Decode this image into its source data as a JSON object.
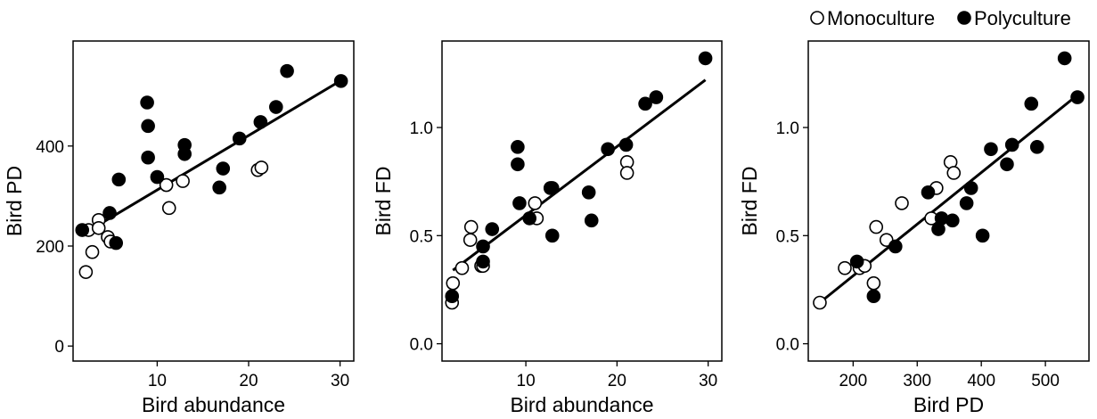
{
  "legend": {
    "entries": [
      {
        "label": "Monoculture",
        "marker": "open-circle"
      },
      {
        "label": "Polyculture",
        "marker": "filled-circle"
      }
    ],
    "placement": "top-right"
  },
  "colors": {
    "ink": "#000000",
    "open_fill": "#ffffff"
  },
  "chart_data": [
    {
      "type": "scatter",
      "title": "",
      "xlabel": "Bird abundance",
      "ylabel": "Bird PD",
      "xlim": [
        0.8,
        31.5
      ],
      "ylim": [
        -30,
        610
      ],
      "xticks": [
        10,
        20,
        30
      ],
      "yticks": [
        0,
        200,
        400
      ],
      "grid": false,
      "trendline": {
        "x": [
          2,
          30
        ],
        "y": [
          225,
          530
        ]
      },
      "series": [
        {
          "name": "Monoculture",
          "marker": "open",
          "points": [
            [
              2.2,
              148
            ],
            [
              2.5,
              232
            ],
            [
              2.9,
              188
            ],
            [
              3.6,
              252
            ],
            [
              3.6,
              236
            ],
            [
              4.6,
              218
            ],
            [
              4.9,
              209
            ],
            [
              11.0,
              322
            ],
            [
              11.3,
              276
            ],
            [
              12.8,
              330
            ],
            [
              21.0,
              352
            ],
            [
              21.4,
              357
            ]
          ]
        },
        {
          "name": "Polyculture",
          "marker": "filled",
          "points": [
            [
              1.8,
              232
            ],
            [
              4.8,
              266
            ],
            [
              5.5,
              206
            ],
            [
              5.8,
              333
            ],
            [
              8.9,
              487
            ],
            [
              9.0,
              440
            ],
            [
              9.0,
              377
            ],
            [
              10.0,
              338
            ],
            [
              13.0,
              402
            ],
            [
              13.0,
              384
            ],
            [
              16.8,
              317
            ],
            [
              17.2,
              355
            ],
            [
              19.0,
              415
            ],
            [
              21.3,
              448
            ],
            [
              23.0,
              478
            ],
            [
              24.2,
              550
            ],
            [
              30.1,
              530
            ]
          ]
        }
      ]
    },
    {
      "type": "scatter",
      "title": "",
      "xlabel": "Bird abundance",
      "ylabel": "Bird FD",
      "xlim": [
        0.8,
        31.5
      ],
      "ylim": [
        -0.08,
        1.4
      ],
      "xticks": [
        10,
        20,
        30
      ],
      "yticks": [
        "0.0",
        "0.5",
        "1.0"
      ],
      "grid": false,
      "trendline": {
        "x": [
          2,
          29.7
        ],
        "y": [
          0.34,
          1.22
        ]
      },
      "series": [
        {
          "name": "Monoculture",
          "marker": "open",
          "points": [
            [
              1.9,
              0.19
            ],
            [
              2.0,
              0.28
            ],
            [
              3.0,
              0.35
            ],
            [
              3.9,
              0.48
            ],
            [
              4.0,
              0.54
            ],
            [
              5.1,
              0.36
            ],
            [
              5.3,
              0.36
            ],
            [
              11.0,
              0.65
            ],
            [
              11.2,
              0.58
            ],
            [
              21.1,
              0.84
            ],
            [
              21.1,
              0.79
            ]
          ]
        },
        {
          "name": "Polyculture",
          "marker": "filled",
          "points": [
            [
              1.9,
              0.22
            ],
            [
              5.3,
              0.38
            ],
            [
              5.3,
              0.45
            ],
            [
              6.3,
              0.53
            ],
            [
              9.1,
              0.91
            ],
            [
              9.1,
              0.83
            ],
            [
              9.3,
              0.65
            ],
            [
              10.4,
              0.58
            ],
            [
              12.7,
              0.72
            ],
            [
              12.9,
              0.72
            ],
            [
              12.9,
              0.5
            ],
            [
              16.9,
              0.7
            ],
            [
              17.2,
              0.57
            ],
            [
              19.0,
              0.9
            ],
            [
              21.0,
              0.92
            ],
            [
              23.1,
              1.11
            ],
            [
              24.3,
              1.14
            ],
            [
              29.7,
              1.32
            ]
          ]
        }
      ]
    },
    {
      "type": "scatter",
      "title": "",
      "xlabel": "Bird PD",
      "ylabel": "Bird FD",
      "xlim": [
        130,
        568
      ],
      "ylim": [
        -0.08,
        1.4
      ],
      "xticks": [
        200,
        300,
        400,
        500
      ],
      "yticks": [
        "0.0",
        "0.5",
        "1.0"
      ],
      "grid": false,
      "trendline": {
        "x": [
          148,
          550
        ],
        "y": [
          0.19,
          1.15
        ]
      },
      "series": [
        {
          "name": "Monoculture",
          "marker": "open",
          "points": [
            [
              148,
              0.19
            ],
            [
              187,
              0.35
            ],
            [
              210,
              0.35
            ],
            [
              218,
              0.36
            ],
            [
              232,
              0.28
            ],
            [
              236,
              0.54
            ],
            [
              252,
              0.48
            ],
            [
              276,
              0.65
            ],
            [
              322,
              0.58
            ],
            [
              330,
              0.72
            ],
            [
              352,
              0.84
            ],
            [
              357,
              0.79
            ]
          ]
        },
        {
          "name": "Polyculture",
          "marker": "filled",
          "points": [
            [
              206,
              0.38
            ],
            [
              232,
              0.22
            ],
            [
              266,
              0.45
            ],
            [
              317,
              0.7
            ],
            [
              333,
              0.53
            ],
            [
              338,
              0.58
            ],
            [
              355,
              0.57
            ],
            [
              377,
              0.65
            ],
            [
              384,
              0.72
            ],
            [
              402,
              0.5
            ],
            [
              415,
              0.9
            ],
            [
              440,
              0.83
            ],
            [
              448,
              0.92
            ],
            [
              478,
              1.11
            ],
            [
              487,
              0.91
            ],
            [
              530,
              1.32
            ],
            [
              550,
              1.14
            ]
          ]
        }
      ]
    }
  ]
}
